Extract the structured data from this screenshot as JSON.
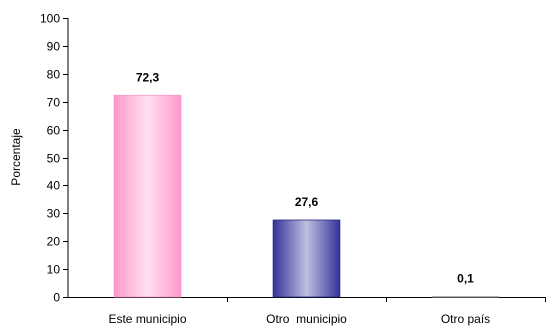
{
  "chart_data": {
    "type": "bar",
    "ylabel": "Porcentaje",
    "ylim": [
      0,
      100
    ],
    "ytick_step": 10,
    "grid": false,
    "categories": [
      "Este municipio",
      "Otro  municipio",
      "Otro país"
    ],
    "values": [
      72.3,
      27.6,
      0.1
    ],
    "value_labels": [
      "72,3",
      "27,6",
      "0,1"
    ],
    "bar_colors": [
      {
        "edge": "#FF99CC",
        "center": "#FFE0F0",
        "stroke": "#F39AC8"
      },
      {
        "edge": "#333399",
        "center": "#C0C0E0",
        "stroke": "#2A2A80"
      },
      {
        "edge": "#999999",
        "center": "#DDDDDD",
        "stroke": "#888888"
      }
    ]
  }
}
